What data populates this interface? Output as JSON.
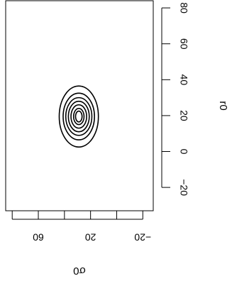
{
  "chart_data": {
    "type": "contour",
    "title": "",
    "xlabel": "σ0",
    "ylabel": "r0",
    "x_ticks": [
      60,
      20,
      -20
    ],
    "y_ticks": [
      -20,
      0,
      20,
      40,
      60,
      80
    ],
    "xlim": [
      85,
      -28
    ],
    "ylim": [
      -33,
      84
    ],
    "orientation": "rotated-90",
    "contours": {
      "center": {
        "x": 29,
        "y": 19.5
      },
      "levels": [
        {
          "level": 1,
          "rx": 15,
          "ry": 17
        },
        {
          "level": 2,
          "rx": 12,
          "ry": 13
        },
        {
          "level": 3,
          "rx": 10,
          "ry": 10.5
        },
        {
          "level": 4,
          "rx": 8,
          "ry": 8.5
        },
        {
          "level": 5,
          "rx": 6,
          "ry": 6.5
        },
        {
          "level": 6,
          "rx": 4,
          "ry": 4.5
        },
        {
          "level": 7,
          "rx": 2.5,
          "ry": 3
        }
      ]
    }
  },
  "labels": {
    "x_title": "σ0",
    "y_title": "r0"
  },
  "colors": {
    "line": "#000000",
    "background": "#ffffff"
  }
}
